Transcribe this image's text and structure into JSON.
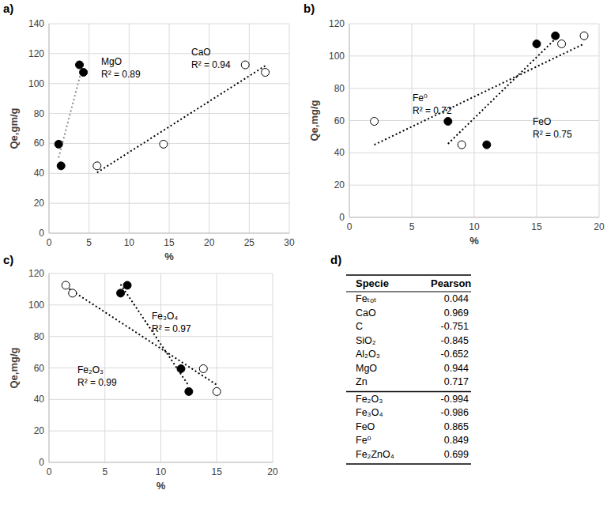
{
  "chart_data": [
    {
      "type": "scatter",
      "title": "a)",
      "x_label": "%",
      "y_label": "Qe,gm/g",
      "xlim": [
        0,
        30
      ],
      "xticks": [
        0,
        5,
        10,
        15,
        20,
        25,
        30
      ],
      "ylim": [
        0,
        140
      ],
      "yticks": [
        0,
        20,
        40,
        60,
        80,
        100,
        120,
        140
      ],
      "grid": true,
      "series": [
        {
          "name": "MgO",
          "annotation": "R² = 0.89",
          "color": "#000000",
          "marker": "circle",
          "line_style": "dotted",
          "x": [
            1.2,
            1.5,
            3.8,
            4.3
          ],
          "values": [
            59.5,
            45,
            112.5,
            107.5
          ]
        },
        {
          "name": "CaO",
          "annotation": "R² = 0.94",
          "color": "#000000",
          "marker": "circle-open",
          "line_style": "dotted",
          "x": [
            6,
            14.3,
            24.5,
            27
          ],
          "values": [
            45,
            59.5,
            112.5,
            107.5
          ]
        }
      ]
    },
    {
      "type": "scatter",
      "title": "b)",
      "x_label": "%",
      "y_label": "Qe,mg/g",
      "xlim": [
        0,
        20
      ],
      "xticks": [
        0,
        5,
        10,
        15,
        20
      ],
      "ylim": [
        0,
        120
      ],
      "yticks": [
        0,
        20,
        40,
        60,
        80,
        100,
        120
      ],
      "grid": true,
      "series": [
        {
          "name": "Fe⁰",
          "annotation": "R² = 0.72",
          "color": "#000000",
          "marker": "circle-open",
          "line_style": "dotted",
          "x": [
            2,
            9,
            17,
            18.8
          ],
          "values": [
            59.5,
            45,
            107.5,
            112.5
          ]
        },
        {
          "name": "FeO",
          "annotation": "R² = 0.75",
          "color": "#000000",
          "marker": "circle",
          "line_style": "dotted",
          "x": [
            7.9,
            11,
            15,
            16.5
          ],
          "values": [
            59.5,
            45,
            107.5,
            112.5
          ]
        }
      ]
    },
    {
      "type": "scatter",
      "title": "c)",
      "x_label": "%",
      "y_label": "Qe,mg/g",
      "xlim": [
        0,
        20
      ],
      "xticks": [
        0,
        5,
        10,
        15,
        20
      ],
      "ylim": [
        0,
        120
      ],
      "yticks": [
        0,
        20,
        40,
        60,
        80,
        100,
        120
      ],
      "grid": true,
      "series": [
        {
          "name": "Fe₃O₄",
          "annotation": "R² = 0.97",
          "color": "#000000",
          "marker": "circle",
          "line_style": "dotted",
          "x": [
            7,
            6.4,
            11.8,
            12.5
          ],
          "values": [
            112.5,
            107.5,
            59.5,
            45
          ]
        },
        {
          "name": "Fe₂O₃",
          "annotation": "R² = 0.99",
          "color": "#000000",
          "marker": "circle-open",
          "line_style": "dotted",
          "x": [
            1.5,
            2.1,
            13.8,
            15
          ],
          "values": [
            112.5,
            107.5,
            59.5,
            45
          ]
        }
      ]
    }
  ],
  "table": {
    "title": "d)",
    "columns": [
      "Specie",
      "Pearson"
    ],
    "groups": [
      [
        [
          "Feₜₒₜ",
          0.044
        ],
        [
          "CaO",
          0.969
        ],
        [
          "C",
          -0.751
        ],
        [
          "SiO₂",
          -0.845
        ],
        [
          "Al₂O₃",
          -0.652
        ],
        [
          "MgO",
          0.944
        ],
        [
          "Zn",
          0.717
        ]
      ],
      [
        [
          "Fe₂O₃",
          -0.994
        ],
        [
          "Fe₃O₄",
          -0.986
        ],
        [
          "FeO",
          0.865
        ],
        [
          "Fe⁰",
          0.849
        ],
        [
          "Fe₂ZnO₄",
          0.699
        ]
      ]
    ]
  }
}
